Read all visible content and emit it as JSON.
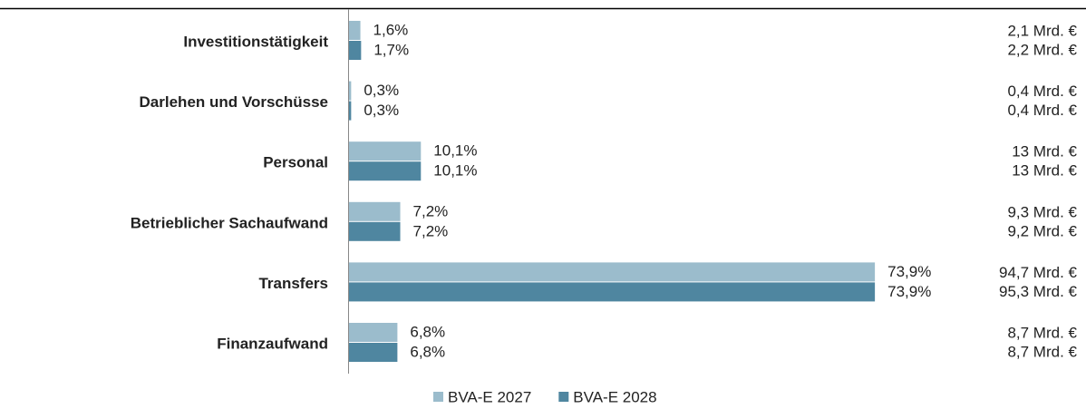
{
  "chart_data": {
    "type": "hbar",
    "categories": [
      "Investitionstätigkeit",
      "Darlehen und Vorschüsse",
      "Personal",
      "Betrieblicher Sachaufwand",
      "Transfers",
      "Finanzaufwand"
    ],
    "series": [
      {
        "name": "BVA-E 2027",
        "color": "#9bbccc",
        "values": [
          1.6,
          0.3,
          10.1,
          7.2,
          73.9,
          6.8
        ],
        "value_labels": [
          "1,6%",
          "0,3%",
          "10,1%",
          "7,2%",
          "73,9%",
          "6,8%"
        ],
        "amount_labels": [
          "2,1 Mrd. €",
          "0,4 Mrd. €",
          "13 Mrd. €",
          "9,3 Mrd. €",
          "94,7 Mrd. €",
          "8,7 Mrd. €"
        ]
      },
      {
        "name": "BVA-E 2028",
        "color": "#4f86a0",
        "values": [
          1.7,
          0.3,
          10.1,
          7.2,
          73.9,
          6.8
        ],
        "value_labels": [
          "1,7%",
          "0,3%",
          "10,1%",
          "7,2%",
          "73,9%",
          "6,8%"
        ],
        "amount_labels": [
          "2,2 Mrd. €",
          "0,4 Mrd. €",
          "13 Mrd. €",
          "9,2 Mrd. €",
          "95,3 Mrd. €",
          "8,7 Mrd. €"
        ]
      }
    ],
    "xlim": [
      0,
      80
    ]
  }
}
